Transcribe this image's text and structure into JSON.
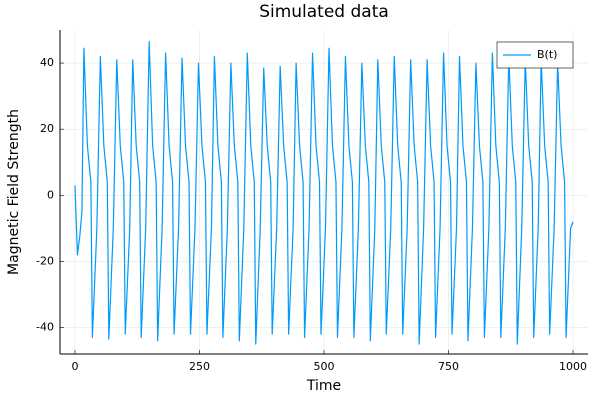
{
  "chart_data": {
    "type": "line",
    "title": "Simulated data",
    "x_label": "Time",
    "y_label": "Magnetic Field Strength",
    "x": [
      0,
      5,
      10,
      14,
      18,
      25,
      32,
      35,
      44,
      51,
      58,
      65,
      68,
      77,
      84,
      91,
      98,
      101,
      110,
      116,
      123,
      130,
      133,
      142,
      149,
      156,
      163,
      166,
      175,
      182,
      189,
      196,
      199,
      208,
      215,
      222,
      229,
      232,
      241,
      248,
      255,
      262,
      265,
      274,
      280,
      287,
      294,
      297,
      306,
      313,
      320,
      327,
      330,
      339,
      346,
      353,
      360,
      363,
      372,
      379,
      386,
      393,
      396,
      405,
      412,
      419,
      426,
      429,
      438,
      444,
      451,
      458,
      461,
      470,
      477,
      484,
      491,
      494,
      503,
      510,
      517,
      524,
      527,
      536,
      543,
      550,
      557,
      560,
      569,
      576,
      583,
      590,
      593,
      602,
      608,
      615,
      622,
      625,
      634,
      641,
      648,
      655,
      658,
      667,
      674,
      681,
      688,
      691,
      700,
      707,
      714,
      721,
      724,
      733,
      740,
      747,
      754,
      757,
      766,
      772,
      779,
      786,
      789,
      798,
      805,
      812,
      819,
      822,
      831,
      838,
      845,
      852,
      855,
      864,
      871,
      878,
      885,
      888,
      897,
      904,
      911,
      918,
      921,
      930,
      936,
      943,
      950,
      953,
      962,
      969,
      976,
      983,
      986,
      995,
      1000
    ],
    "series": [
      {
        "name": "B(t)",
        "color": "#009af9",
        "values": [
          3,
          -18,
          -12,
          -5,
          44.5,
          15,
          4,
          -43,
          -10,
          42,
          15,
          4,
          -43.5,
          -10,
          41,
          15,
          4,
          -42,
          -10,
          41,
          15,
          4,
          -43,
          -10,
          46.5,
          15,
          4,
          -44,
          -10,
          43,
          15,
          4,
          -42,
          -10,
          41.5,
          15,
          4,
          -42,
          -10,
          40,
          15,
          4,
          -42,
          -10,
          42,
          15,
          4,
          -43,
          -10,
          40,
          15,
          4,
          -44,
          -10,
          43,
          15,
          4,
          -45,
          -10,
          38.5,
          15,
          4,
          -42,
          -10,
          39,
          15,
          4,
          -42,
          -10,
          40,
          15,
          4,
          -43,
          -10,
          43,
          15,
          4,
          -42,
          -10,
          44.5,
          15,
          4,
          -43,
          -10,
          42,
          15,
          4,
          -43,
          -10,
          40,
          15,
          4,
          -44,
          -10,
          41,
          15,
          4,
          -42,
          -10,
          42,
          15,
          4,
          -42,
          -10,
          41,
          15,
          4,
          -45,
          -10,
          41,
          15,
          4,
          -43,
          -10,
          43,
          15,
          4,
          -42,
          -10,
          42,
          15,
          4,
          -44,
          -10,
          40,
          15,
          4,
          -43,
          -10,
          43,
          15,
          4,
          -43,
          -10,
          42,
          15,
          4,
          -45,
          -10,
          41,
          15,
          4,
          -43,
          -10,
          41,
          15,
          4,
          -42,
          -10,
          40,
          15,
          4,
          -43,
          -10,
          -8
        ]
      }
    ],
    "xlim": [
      -30,
      1030
    ],
    "ylim": [
      -48,
      50
    ],
    "xticks": [
      0,
      250,
      500,
      750,
      1000
    ],
    "yticks": [
      -40,
      -20,
      0,
      20,
      40
    ],
    "grid": true,
    "legend": "top-right"
  }
}
